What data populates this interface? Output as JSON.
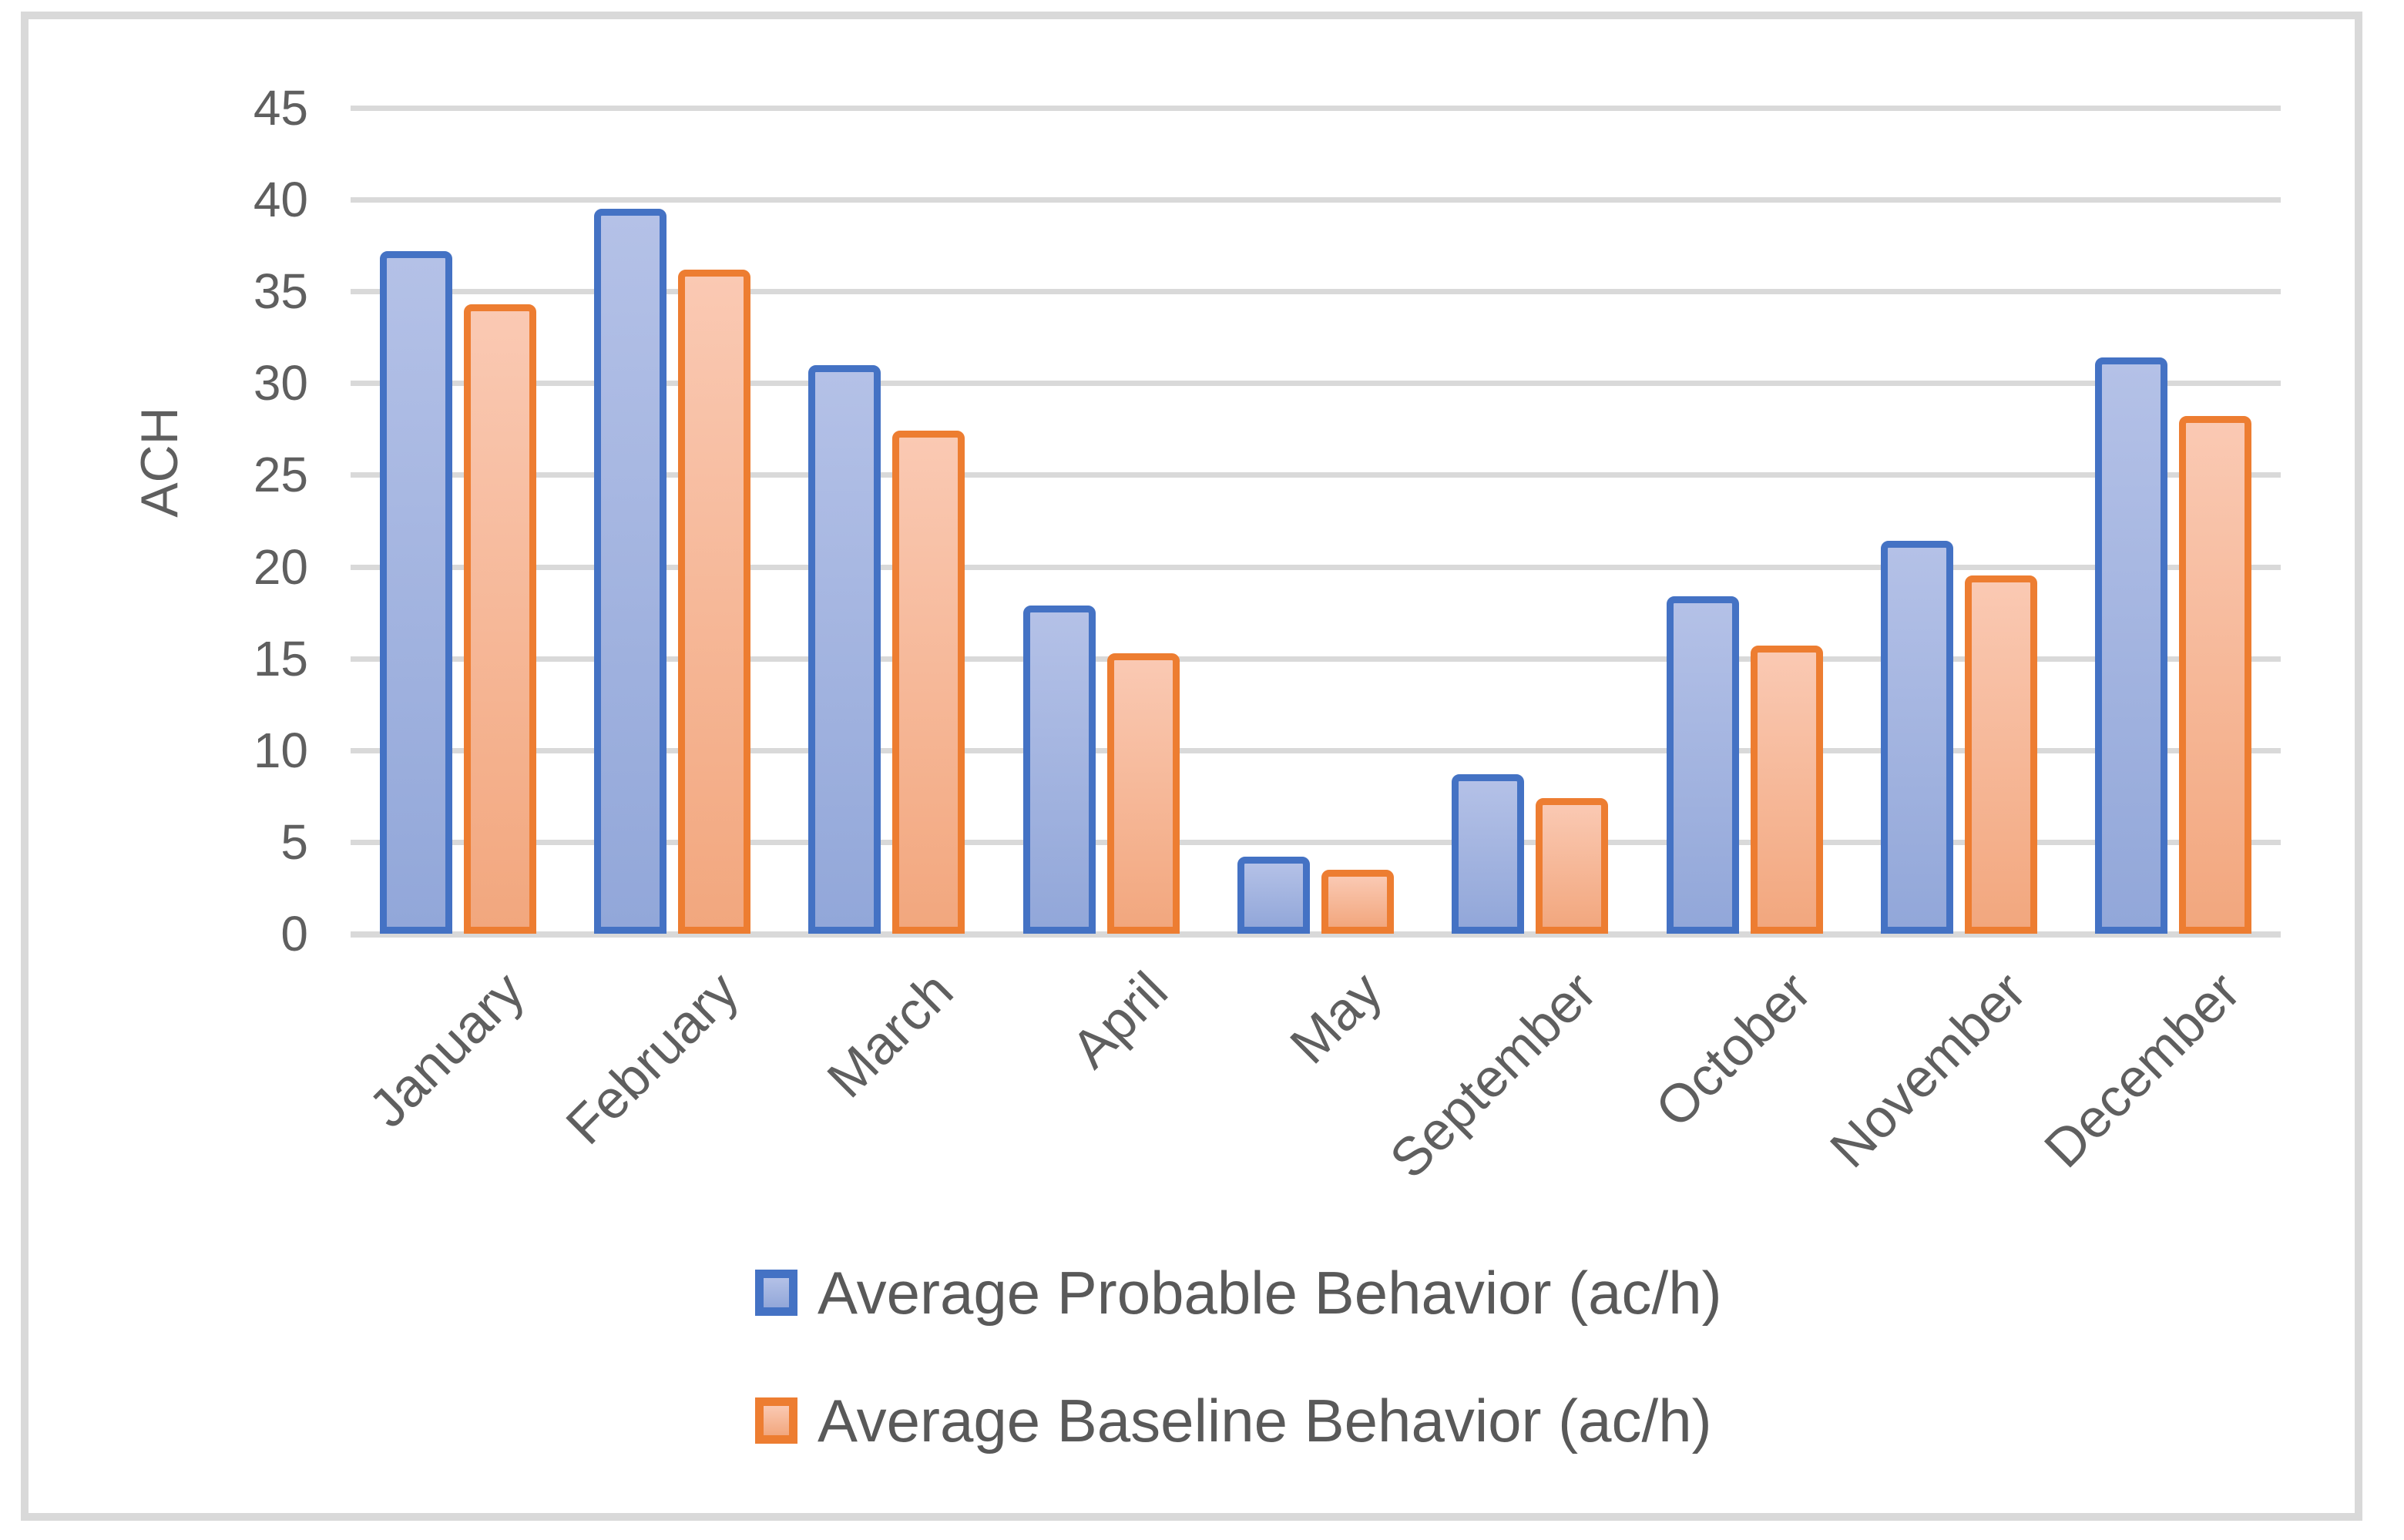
{
  "chart_data": {
    "type": "bar",
    "title": "",
    "xlabel": "",
    "ylabel": "ACH",
    "ylim": [
      0,
      45
    ],
    "ytick_step": 5,
    "yticks": [
      0,
      5,
      10,
      15,
      20,
      25,
      30,
      35,
      40,
      45
    ],
    "grid": true,
    "legend_position": "bottom",
    "categories": [
      "January",
      "February",
      "March",
      "April",
      "May",
      "September",
      "October",
      "November",
      "December"
    ],
    "series": [
      {
        "name": "Average Probable Behavior (ac/h)",
        "values": [
          37.2,
          39.5,
          31.0,
          17.9,
          4.2,
          8.7,
          18.4,
          21.4,
          31.4
        ],
        "border_color": "#4472C4",
        "fill_top": "#B4C1E7",
        "fill_bottom": "#92A7D9"
      },
      {
        "name": "Average Baseline Behavior (ac/h)",
        "values": [
          34.3,
          36.2,
          27.4,
          15.3,
          3.5,
          7.4,
          15.7,
          19.5,
          28.2
        ],
        "border_color": "#ED7D31",
        "fill_top": "#FAC9B3",
        "fill_bottom": "#F2A77E"
      }
    ],
    "colors": {
      "gridline": "#d9d9d9",
      "axis_text": "#5f5f5f",
      "legend_text": "#595959",
      "frame_border": "#d9d9d9"
    }
  }
}
